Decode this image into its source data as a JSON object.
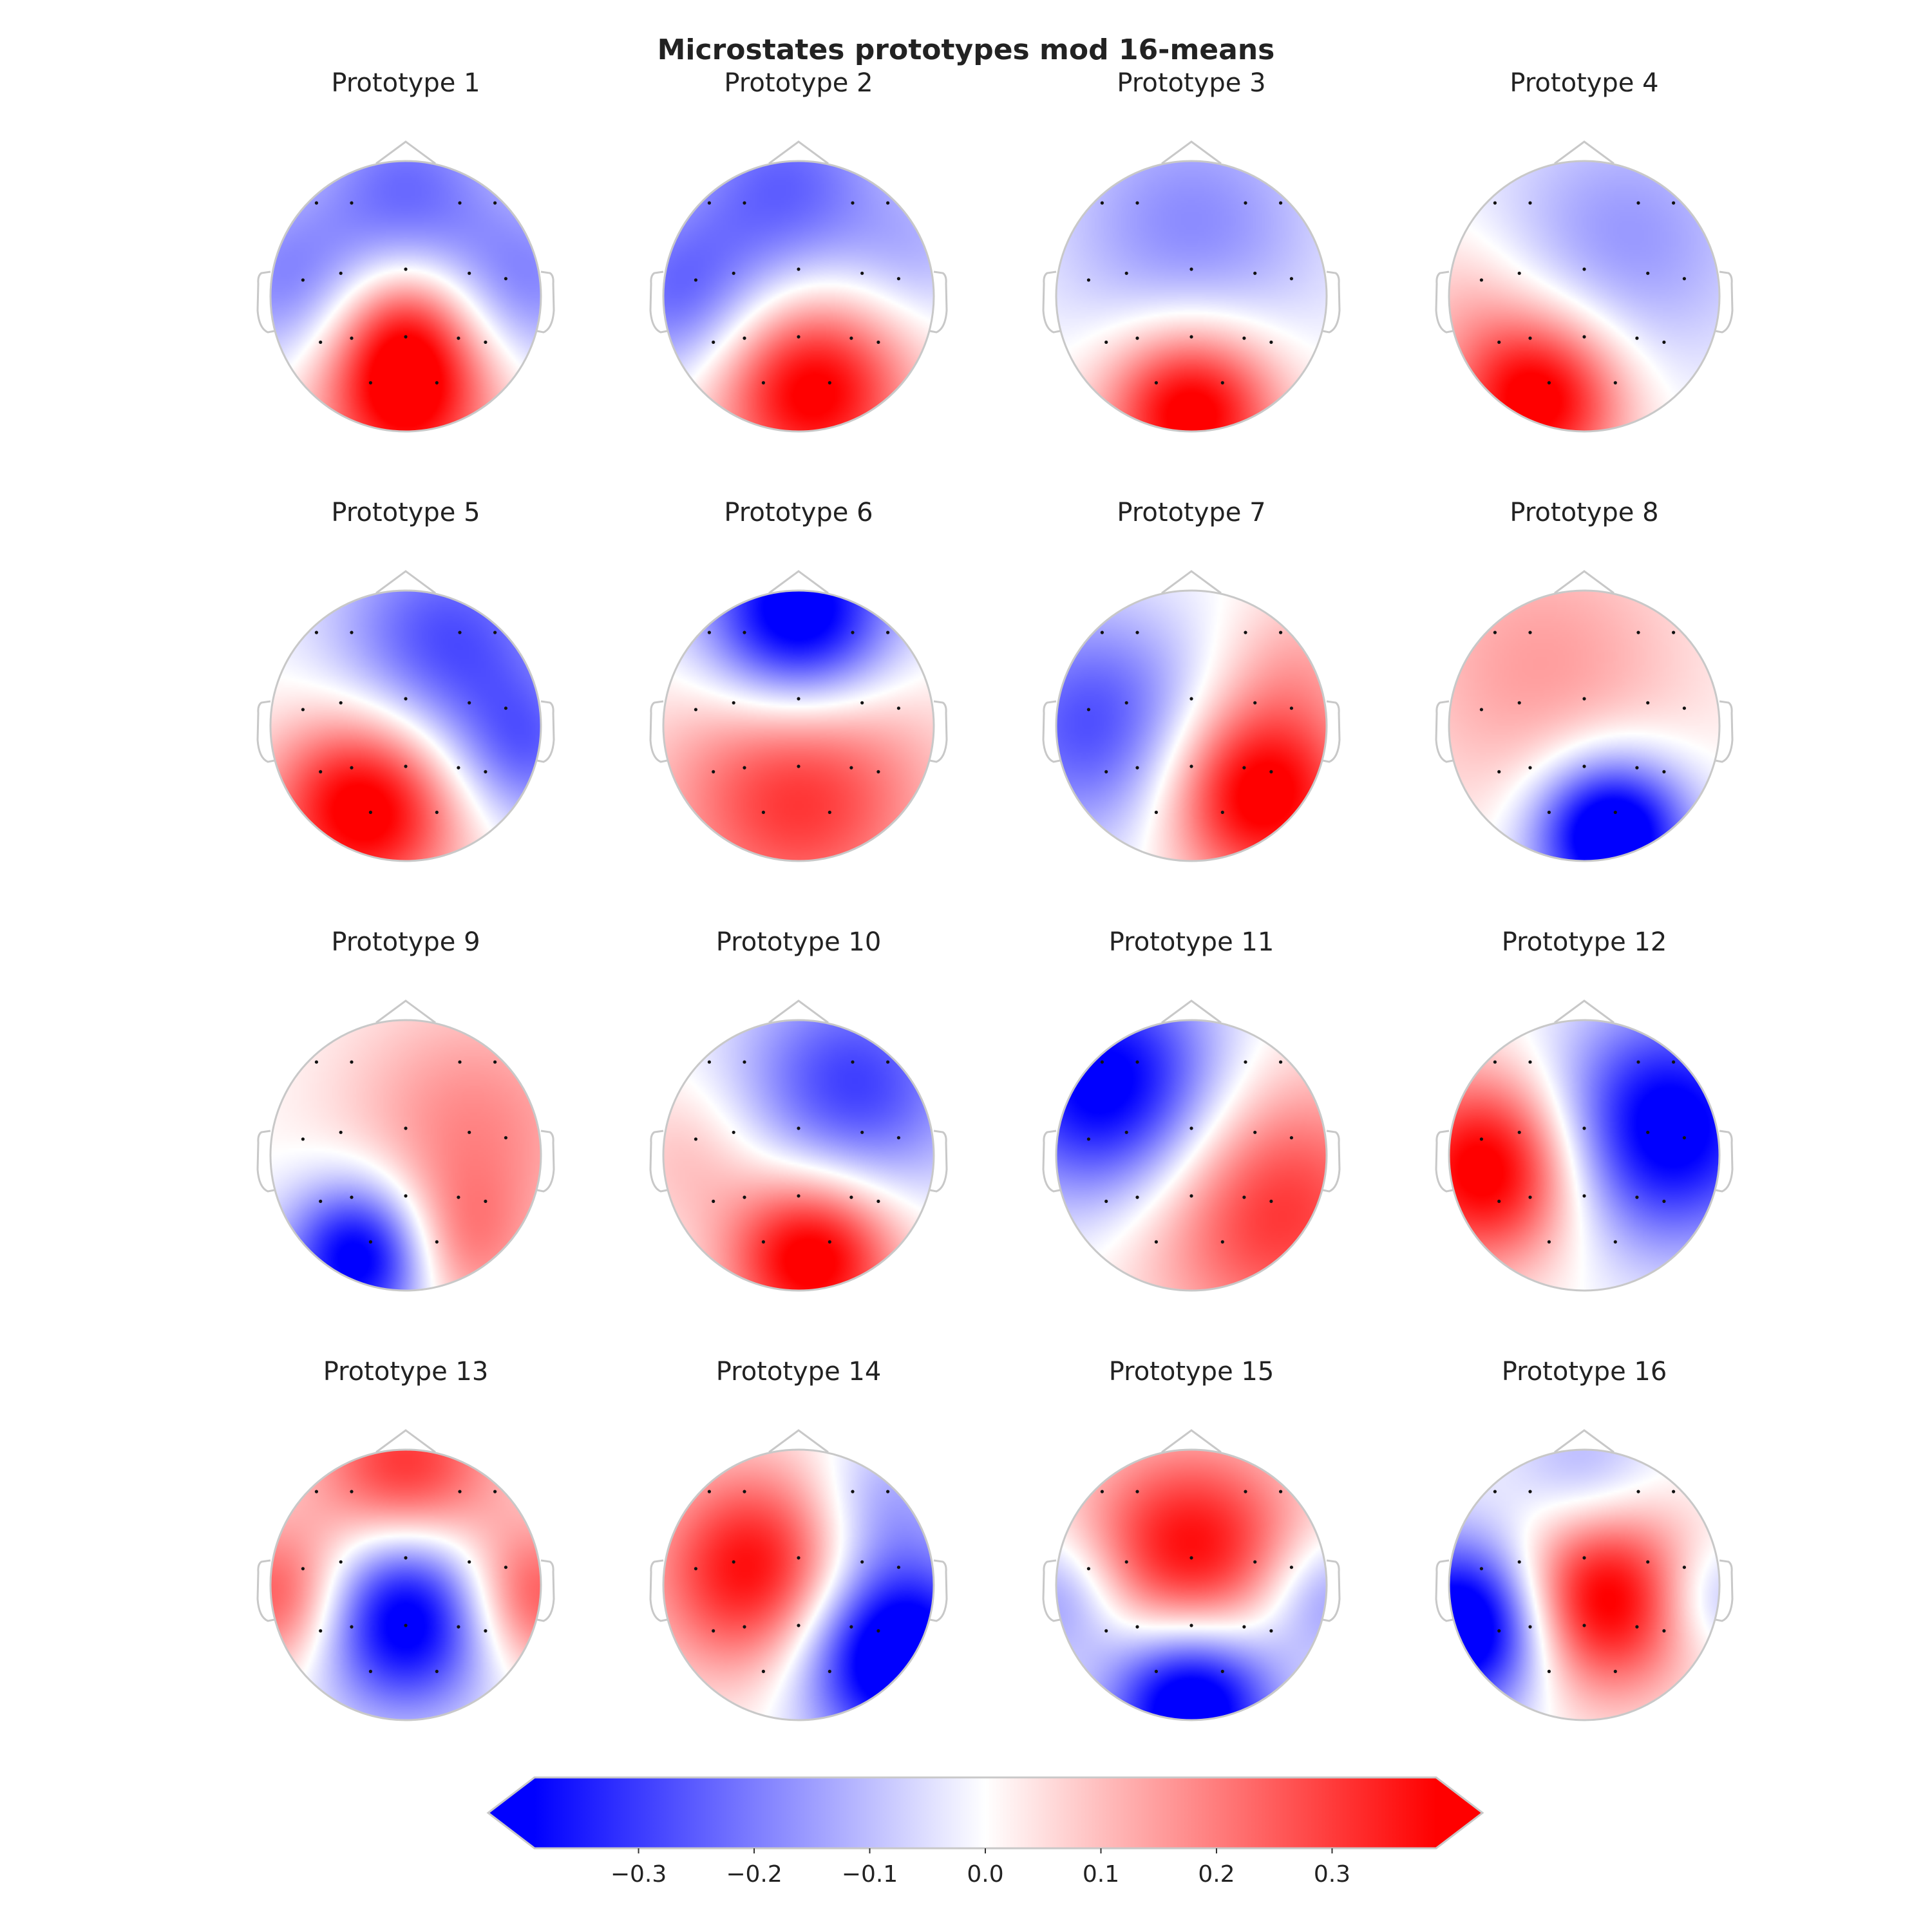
{
  "chart_data": {
    "type": "heatmap",
    "subtype": "EEG topographic maps",
    "title": "Microstates prototypes mod 16-means",
    "colormap": "bwr",
    "colorbar": {
      "range": [
        -0.39,
        0.39
      ],
      "ticks": [
        -0.3,
        -0.2,
        -0.1,
        0.0,
        0.1,
        0.2,
        0.3
      ],
      "tick_labels": [
        "−0.3",
        "−0.2",
        "−0.1",
        "0.0",
        "0.1",
        "0.2",
        "0.3"
      ],
      "extend": "both",
      "orientation": "horizontal"
    },
    "electrodes": [
      {
        "x": -0.66,
        "y": 0.69
      },
      {
        "x": -0.4,
        "y": 0.69
      },
      {
        "x": 0.4,
        "y": 0.69
      },
      {
        "x": 0.66,
        "y": 0.69
      },
      {
        "x": -0.76,
        "y": 0.12
      },
      {
        "x": -0.48,
        "y": 0.17
      },
      {
        "x": 0.0,
        "y": 0.2
      },
      {
        "x": 0.47,
        "y": 0.17
      },
      {
        "x": 0.74,
        "y": 0.13
      },
      {
        "x": -0.63,
        "y": -0.34
      },
      {
        "x": -0.4,
        "y": -0.31
      },
      {
        "x": 0.0,
        "y": -0.3
      },
      {
        "x": 0.39,
        "y": -0.31
      },
      {
        "x": 0.59,
        "y": -0.34
      },
      {
        "x": -0.26,
        "y": -0.64
      },
      {
        "x": 0.23,
        "y": -0.64
      }
    ],
    "prototypes": [
      {
        "title": "Prototype 1",
        "sources": [
          {
            "x": 0,
            "y": 0.8,
            "v": -0.22,
            "s": 0.5
          },
          {
            "x": -0.9,
            "y": 0.1,
            "v": -0.18,
            "s": 0.45
          },
          {
            "x": 0.9,
            "y": 0.1,
            "v": -0.18,
            "s": 0.45
          },
          {
            "x": 0,
            "y": -0.75,
            "v": 0.42,
            "s": 0.45
          },
          {
            "x": 0,
            "y": -0.2,
            "v": 0.2,
            "s": 0.35
          }
        ]
      },
      {
        "title": "Prototype 2",
        "sources": [
          {
            "x": -0.1,
            "y": 0.8,
            "v": -0.24,
            "s": 0.55
          },
          {
            "x": -0.9,
            "y": 0.0,
            "v": -0.22,
            "s": 0.45
          },
          {
            "x": 0.9,
            "y": 0.3,
            "v": -0.1,
            "s": 0.4
          },
          {
            "x": 0.1,
            "y": -0.7,
            "v": 0.42,
            "s": 0.5
          }
        ]
      },
      {
        "title": "Prototype 3",
        "sources": [
          {
            "x": 0,
            "y": 0.5,
            "v": -0.18,
            "s": 0.7
          },
          {
            "x": 0,
            "y": -0.85,
            "v": 0.45,
            "s": 0.45
          }
        ]
      },
      {
        "title": "Prototype 4",
        "sources": [
          {
            "x": 0.3,
            "y": 0.4,
            "v": -0.16,
            "s": 0.7
          },
          {
            "x": -0.35,
            "y": -0.75,
            "v": 0.45,
            "s": 0.45
          },
          {
            "x": -0.9,
            "y": 0.0,
            "v": 0.08,
            "s": 0.4
          }
        ]
      },
      {
        "title": "Prototype 5",
        "sources": [
          {
            "x": 0.3,
            "y": 0.6,
            "v": -0.28,
            "s": 0.6
          },
          {
            "x": 0.9,
            "y": -0.2,
            "v": -0.2,
            "s": 0.4
          },
          {
            "x": -0.3,
            "y": -0.6,
            "v": 0.45,
            "s": 0.5
          }
        ]
      },
      {
        "title": "Prototype 6",
        "sources": [
          {
            "x": 0,
            "y": 0.8,
            "v": -0.5,
            "s": 0.5
          },
          {
            "x": 0,
            "y": -0.5,
            "v": 0.32,
            "s": 0.7
          }
        ]
      },
      {
        "title": "Prototype 7",
        "sources": [
          {
            "x": -0.7,
            "y": 0.0,
            "v": -0.28,
            "s": 0.6
          },
          {
            "x": 0.5,
            "y": -0.5,
            "v": 0.45,
            "s": 0.5
          },
          {
            "x": 0.8,
            "y": 0.5,
            "v": 0.1,
            "s": 0.4
          }
        ]
      },
      {
        "title": "Prototype 8",
        "sources": [
          {
            "x": 0.2,
            "y": -0.8,
            "v": -0.55,
            "s": 0.4
          },
          {
            "x": -0.3,
            "y": 0.4,
            "v": 0.15,
            "s": 0.8
          }
        ]
      },
      {
        "title": "Prototype 9",
        "sources": [
          {
            "x": -0.3,
            "y": -0.75,
            "v": -0.5,
            "s": 0.4
          },
          {
            "x": 0.5,
            "y": 0.2,
            "v": 0.18,
            "s": 0.7
          },
          {
            "x": 0.3,
            "y": -0.7,
            "v": 0.2,
            "s": 0.4
          }
        ]
      },
      {
        "title": "Prototype 10",
        "sources": [
          {
            "x": 0.4,
            "y": 0.5,
            "v": -0.3,
            "s": 0.6
          },
          {
            "x": 0.1,
            "y": -0.75,
            "v": 0.45,
            "s": 0.45
          },
          {
            "x": -0.8,
            "y": 0.0,
            "v": 0.1,
            "s": 0.4
          }
        ]
      },
      {
        "title": "Prototype 11",
        "sources": [
          {
            "x": -0.6,
            "y": 0.5,
            "v": -0.45,
            "s": 0.6
          },
          {
            "x": 0.6,
            "y": -0.4,
            "v": 0.32,
            "s": 0.7
          }
        ]
      },
      {
        "title": "Prototype 12",
        "sources": [
          {
            "x": -0.7,
            "y": -0.1,
            "v": 0.45,
            "s": 0.5
          },
          {
            "x": 0.6,
            "y": 0.2,
            "v": -0.45,
            "s": 0.6
          }
        ]
      },
      {
        "title": "Prototype 13",
        "sources": [
          {
            "x": 0,
            "y": -0.2,
            "v": -0.5,
            "s": 0.5
          },
          {
            "x": 0,
            "y": 0.8,
            "v": 0.35,
            "s": 0.5
          },
          {
            "x": -0.9,
            "y": -0.1,
            "v": 0.3,
            "s": 0.4
          },
          {
            "x": 0.9,
            "y": -0.1,
            "v": 0.3,
            "s": 0.4
          }
        ]
      },
      {
        "title": "Prototype 14",
        "sources": [
          {
            "x": -0.3,
            "y": 0.1,
            "v": 0.4,
            "s": 0.55
          },
          {
            "x": 0.7,
            "y": -0.5,
            "v": -0.55,
            "s": 0.5
          },
          {
            "x": 0.6,
            "y": 0.6,
            "v": -0.15,
            "s": 0.4
          }
        ]
      },
      {
        "title": "Prototype 15",
        "sources": [
          {
            "x": 0,
            "y": 0.2,
            "v": 0.4,
            "s": 0.6
          },
          {
            "x": 0,
            "y": -0.85,
            "v": -0.55,
            "s": 0.45
          },
          {
            "x": -0.95,
            "y": -0.1,
            "v": -0.2,
            "s": 0.35
          },
          {
            "x": 0.95,
            "y": -0.1,
            "v": -0.2,
            "s": 0.35
          }
        ]
      },
      {
        "title": "Prototype 16",
        "sources": [
          {
            "x": 0.1,
            "y": -0.1,
            "v": 0.45,
            "s": 0.5
          },
          {
            "x": -0.85,
            "y": -0.3,
            "v": -0.55,
            "s": 0.45
          },
          {
            "x": 0.0,
            "y": 0.8,
            "v": -0.15,
            "s": 0.4
          },
          {
            "x": 0.95,
            "y": -0.1,
            "v": -0.15,
            "s": 0.3
          }
        ]
      }
    ]
  }
}
